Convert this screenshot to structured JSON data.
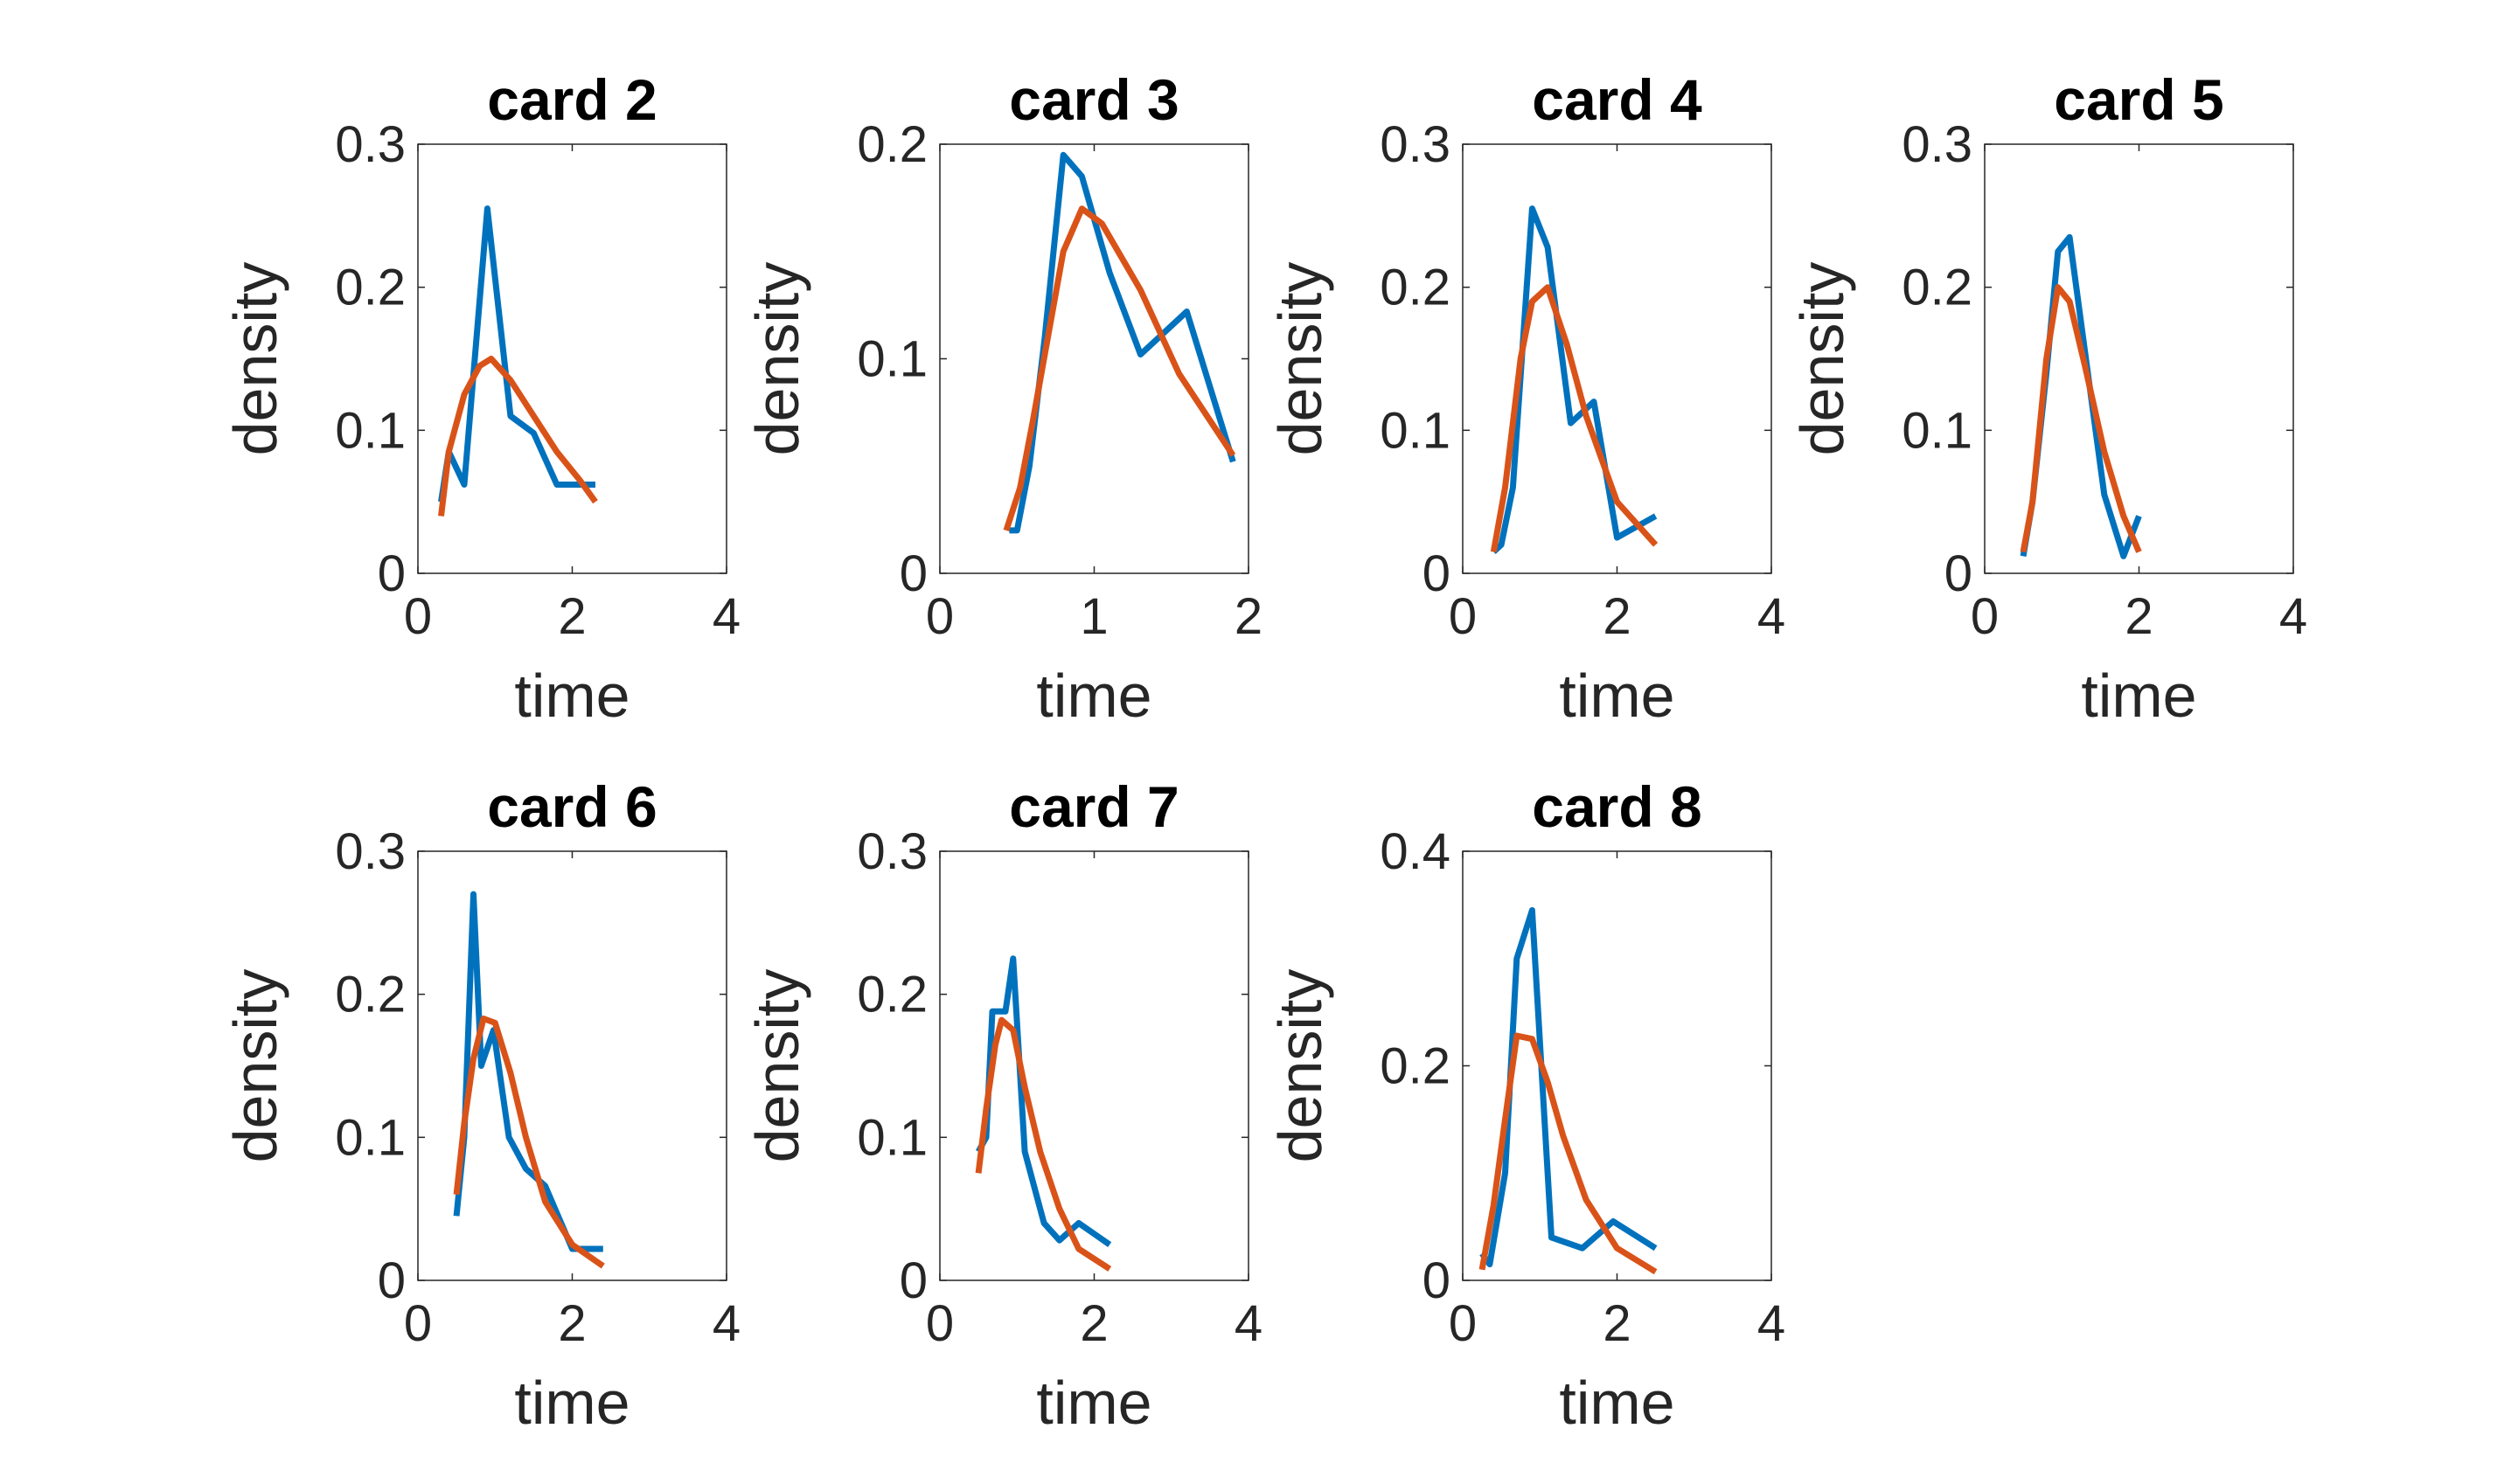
{
  "figure": {
    "colors": {
      "empirical": "#0072BD",
      "fitted": "#D95319",
      "axis": "#262626"
    }
  },
  "chart_data": [
    {
      "type": "line",
      "title": "card 2",
      "xlabel": "time",
      "ylabel": "density",
      "xlim": [
        0,
        4
      ],
      "ylim": [
        0,
        0.3
      ],
      "xticks": [
        0,
        2,
        4
      ],
      "yticks": [
        0,
        0.1,
        0.2,
        0.3
      ],
      "series": [
        {
          "color": "#0072BD",
          "x": [
            0.3,
            0.4,
            0.6,
            0.9,
            1.2,
            1.5,
            1.8,
            2.0,
            2.3
          ],
          "y": [
            0.05,
            0.085,
            0.062,
            0.255,
            0.11,
            0.098,
            0.062,
            0.062,
            0.062
          ]
        },
        {
          "color": "#D95319",
          "x": [
            0.3,
            0.4,
            0.6,
            0.8,
            0.95,
            1.2,
            1.5,
            1.8,
            2.1,
            2.3
          ],
          "y": [
            0.04,
            0.085,
            0.125,
            0.145,
            0.15,
            0.135,
            0.11,
            0.085,
            0.065,
            0.05
          ]
        }
      ]
    },
    {
      "type": "line",
      "title": "card 3",
      "xlabel": "time",
      "ylabel": "density",
      "xlim": [
        0,
        2
      ],
      "ylim": [
        0,
        0.2
      ],
      "xticks": [
        0,
        1,
        2
      ],
      "yticks": [
        0,
        0.1,
        0.2
      ],
      "series": [
        {
          "color": "#0072BD",
          "x": [
            0.45,
            0.5,
            0.58,
            0.68,
            0.8,
            0.92,
            1.1,
            1.3,
            1.6,
            1.9
          ],
          "y": [
            0.02,
            0.02,
            0.05,
            0.11,
            0.195,
            0.185,
            0.14,
            0.102,
            0.122,
            0.052
          ]
        },
        {
          "color": "#D95319",
          "x": [
            0.43,
            0.52,
            0.6,
            0.7,
            0.8,
            0.92,
            1.05,
            1.3,
            1.55,
            1.9
          ],
          "y": [
            0.02,
            0.04,
            0.07,
            0.11,
            0.15,
            0.17,
            0.163,
            0.132,
            0.093,
            0.055
          ]
        }
      ]
    },
    {
      "type": "line",
      "title": "card 4",
      "xlabel": "time",
      "ylabel": "density",
      "xlim": [
        0,
        4
      ],
      "ylim": [
        0,
        0.3
      ],
      "xticks": [
        0,
        2,
        4
      ],
      "yticks": [
        0,
        0.1,
        0.2,
        0.3
      ],
      "series": [
        {
          "color": "#0072BD",
          "x": [
            0.4,
            0.5,
            0.65,
            0.9,
            1.1,
            1.4,
            1.7,
            2.0,
            2.5
          ],
          "y": [
            0.015,
            0.02,
            0.06,
            0.255,
            0.228,
            0.105,
            0.12,
            0.025,
            0.04
          ]
        },
        {
          "color": "#D95319",
          "x": [
            0.4,
            0.55,
            0.75,
            0.9,
            1.1,
            1.35,
            1.6,
            1.8,
            2.0,
            2.5
          ],
          "y": [
            0.015,
            0.06,
            0.15,
            0.19,
            0.2,
            0.16,
            0.11,
            0.08,
            0.05,
            0.02
          ]
        }
      ]
    },
    {
      "type": "line",
      "title": "card 5",
      "xlabel": "time",
      "ylabel": "density",
      "xlim": [
        0,
        4
      ],
      "ylim": [
        0,
        0.3
      ],
      "xticks": [
        0,
        2,
        4
      ],
      "yticks": [
        0,
        0.1,
        0.2,
        0.3
      ],
      "series": [
        {
          "color": "#0072BD",
          "x": [
            0.5,
            0.62,
            0.8,
            0.95,
            1.1,
            1.3,
            1.55,
            1.8,
            2.0
          ],
          "y": [
            0.012,
            0.05,
            0.14,
            0.225,
            0.235,
            0.155,
            0.055,
            0.012,
            0.04
          ]
        },
        {
          "color": "#D95319",
          "x": [
            0.5,
            0.62,
            0.8,
            0.95,
            1.1,
            1.3,
            1.55,
            1.8,
            2.0
          ],
          "y": [
            0.015,
            0.05,
            0.15,
            0.2,
            0.19,
            0.145,
            0.085,
            0.04,
            0.015
          ]
        }
      ]
    },
    {
      "type": "line",
      "title": "card 6",
      "xlabel": "time",
      "ylabel": "density",
      "xlim": [
        0,
        4
      ],
      "ylim": [
        0,
        0.3
      ],
      "xticks": [
        0,
        2,
        4
      ],
      "yticks": [
        0,
        0.1,
        0.2,
        0.3
      ],
      "series": [
        {
          "color": "#0072BD",
          "x": [
            0.5,
            0.6,
            0.72,
            0.82,
            0.98,
            1.18,
            1.4,
            1.65,
            2.0,
            2.4
          ],
          "y": [
            0.045,
            0.1,
            0.27,
            0.15,
            0.175,
            0.1,
            0.078,
            0.066,
            0.022,
            0.022
          ]
        },
        {
          "color": "#D95319",
          "x": [
            0.5,
            0.6,
            0.72,
            0.85,
            1.0,
            1.2,
            1.4,
            1.65,
            2.0,
            2.4
          ],
          "y": [
            0.06,
            0.11,
            0.155,
            0.183,
            0.18,
            0.145,
            0.1,
            0.055,
            0.025,
            0.01
          ]
        }
      ]
    },
    {
      "type": "line",
      "title": "card 7",
      "xlabel": "time",
      "ylabel": "density",
      "xlim": [
        0,
        4
      ],
      "ylim": [
        0,
        0.3
      ],
      "xticks": [
        0,
        2,
        4
      ],
      "yticks": [
        0,
        0.1,
        0.2,
        0.3
      ],
      "series": [
        {
          "color": "#0072BD",
          "x": [
            0.5,
            0.6,
            0.68,
            0.85,
            0.95,
            1.1,
            1.35,
            1.55,
            1.8,
            2.2
          ],
          "y": [
            0.09,
            0.1,
            0.188,
            0.188,
            0.225,
            0.09,
            0.04,
            0.028,
            0.04,
            0.025
          ]
        },
        {
          "color": "#D95319",
          "x": [
            0.5,
            0.6,
            0.72,
            0.8,
            0.95,
            1.1,
            1.3,
            1.55,
            1.8,
            2.2
          ],
          "y": [
            0.075,
            0.12,
            0.165,
            0.182,
            0.175,
            0.135,
            0.09,
            0.05,
            0.022,
            0.008
          ]
        }
      ]
    },
    {
      "type": "line",
      "title": "card 8",
      "xlabel": "time",
      "ylabel": "density",
      "xlim": [
        0,
        4
      ],
      "ylim": [
        0,
        0.4
      ],
      "xticks": [
        0,
        2,
        4
      ],
      "yticks": [
        0,
        0.2,
        0.4
      ],
      "series": [
        {
          "color": "#0072BD",
          "x": [
            0.25,
            0.35,
            0.55,
            0.7,
            0.9,
            1.15,
            1.55,
            1.95,
            2.5
          ],
          "y": [
            0.025,
            0.015,
            0.1,
            0.3,
            0.345,
            0.04,
            0.03,
            0.055,
            0.03
          ]
        },
        {
          "color": "#D95319",
          "x": [
            0.25,
            0.4,
            0.55,
            0.7,
            0.9,
            1.1,
            1.3,
            1.6,
            2.0,
            2.5
          ],
          "y": [
            0.01,
            0.07,
            0.15,
            0.228,
            0.225,
            0.185,
            0.135,
            0.075,
            0.03,
            0.008
          ]
        }
      ]
    }
  ]
}
